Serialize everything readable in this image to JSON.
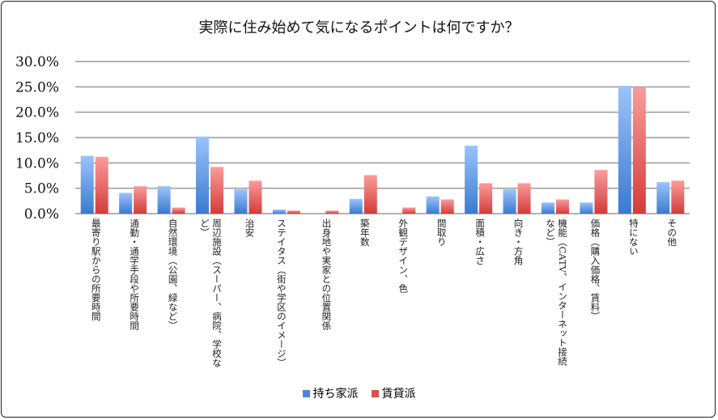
{
  "chart_data": {
    "type": "bar",
    "title": "実際に住み始めて気になるポイントは何ですか？",
    "categories": [
      "最寄り駅からの所要時間",
      "通勤・通学手段や所要時間",
      "自然環境（公園、緑など）",
      "周辺施設（スーパー、病院、学校など）",
      "治安",
      "ステイタス（街や学区のイメージ）",
      "出身地や実家との位置関係",
      "築年数",
      "外観デザイン、色",
      "間取り",
      "面積・広さ",
      "向き・方角",
      "機能（CATV、インターネット接続など）",
      "価格（購入価格、賃料）",
      "特にない",
      "その他"
    ],
    "series": [
      {
        "name": "持ち家派",
        "color": "#4a86d6",
        "values": [
          11.4,
          4.1,
          5.4,
          15.2,
          4.8,
          0.8,
          0,
          2.9,
          0,
          3.4,
          13.4,
          4.8,
          2.2,
          2.2,
          25.2,
          6.2
        ]
      },
      {
        "name": "賃貸派",
        "color": "#d9504f",
        "values": [
          11.2,
          5.4,
          1.2,
          9.2,
          6.5,
          0.6,
          0.6,
          7.6,
          1.2,
          2.8,
          6.0,
          6.0,
          2.8,
          8.6,
          25.0,
          6.5
        ]
      }
    ],
    "ylim": [
      0,
      30
    ],
    "yticks": [
      "0.0%",
      "5.0%",
      "10.0%",
      "15.0%",
      "20.0%",
      "25.0%",
      "30.0%"
    ],
    "grid": true,
    "legend": "bottom"
  }
}
